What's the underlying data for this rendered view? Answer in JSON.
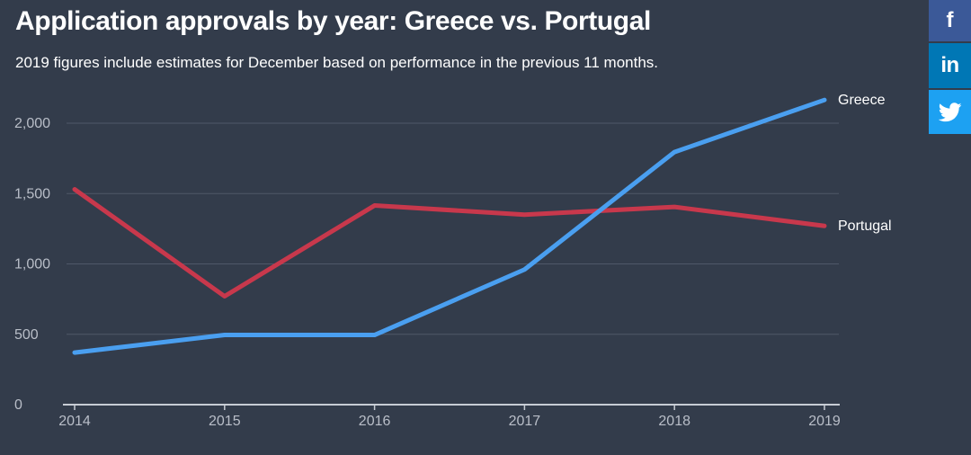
{
  "header": {
    "title": "Application approvals by year: Greece vs. Portugal",
    "subtitle": "2019 figures include estimates for December based on performance in the previous 11 months."
  },
  "share": {
    "facebook_icon": "facebook-icon",
    "linkedin_icon": "linkedin-icon",
    "twitter_icon": "twitter-icon"
  },
  "colors": {
    "background": "#333c4b",
    "greece": "#4a9ff0",
    "portugal": "#c8384c",
    "grid": "#4f5868",
    "tick": "#b9bec8"
  },
  "chart_data": {
    "type": "line",
    "title": "Application approvals by year: Greece vs. Portugal",
    "subtitle": "2019 figures include estimates for December based on performance in the previous 11 months.",
    "xlabel": "",
    "ylabel": "",
    "x": [
      "2014",
      "2015",
      "2016",
      "2017",
      "2018",
      "2019"
    ],
    "ylim": [
      0,
      2000
    ],
    "yticks": [
      0,
      500,
      1000,
      1500,
      2000
    ],
    "ytick_labels": [
      "0",
      "500",
      "1,000",
      "1,500",
      "2,000"
    ],
    "grid": true,
    "legend": "inline-right",
    "series": [
      {
        "name": "Greece",
        "values": [
          370,
          495,
          495,
          960,
          1795,
          2165
        ]
      },
      {
        "name": "Portugal",
        "values": [
          1530,
          770,
          1415,
          1350,
          1405,
          1270
        ]
      }
    ]
  }
}
